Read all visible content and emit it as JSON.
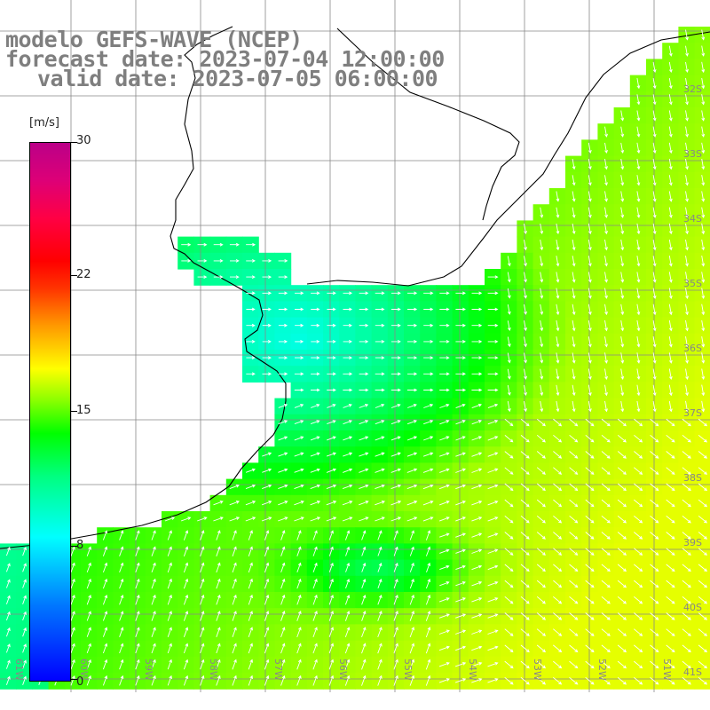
{
  "title": {
    "line1": "modelo GEFS-WAVE (NCEP)",
    "line2": "forecast date: 2023-07-04 12:00:00",
    "line3": "valid date: 2023-07-05 06:00:00"
  },
  "colorbar": {
    "unit": "[m/s]",
    "ticks": [
      "30",
      "22",
      "15",
      "8",
      "0"
    ],
    "tick_values": [
      30,
      22,
      15,
      8,
      0
    ],
    "min": 0,
    "max": 30
  },
  "map": {
    "right_lat_labels": [
      "32S",
      "33S",
      "34S",
      "35S",
      "36S",
      "37S",
      "38S",
      "39S",
      "40S",
      "41S"
    ],
    "bottom_lon_labels": [
      "61W",
      "60W",
      "59W",
      "58W",
      "57W",
      "56W",
      "55W",
      "54W",
      "53W",
      "52W",
      "51W"
    ]
  },
  "chart_data": {
    "type": "heatmap",
    "variable": "wind speed",
    "unit": "m/s",
    "color_range": [
      0,
      30
    ],
    "colorbar_ticks": [
      0,
      8,
      15,
      22,
      30
    ],
    "lat_labels": [
      "32S",
      "33S",
      "34S",
      "35S",
      "36S",
      "37S",
      "38S",
      "39S",
      "40S",
      "41S"
    ],
    "lon_labels": [
      "61W",
      "60W",
      "59W",
      "58W",
      "57W",
      "56W",
      "55W",
      "54W",
      "53W",
      "52W",
      "51W"
    ]
  }
}
